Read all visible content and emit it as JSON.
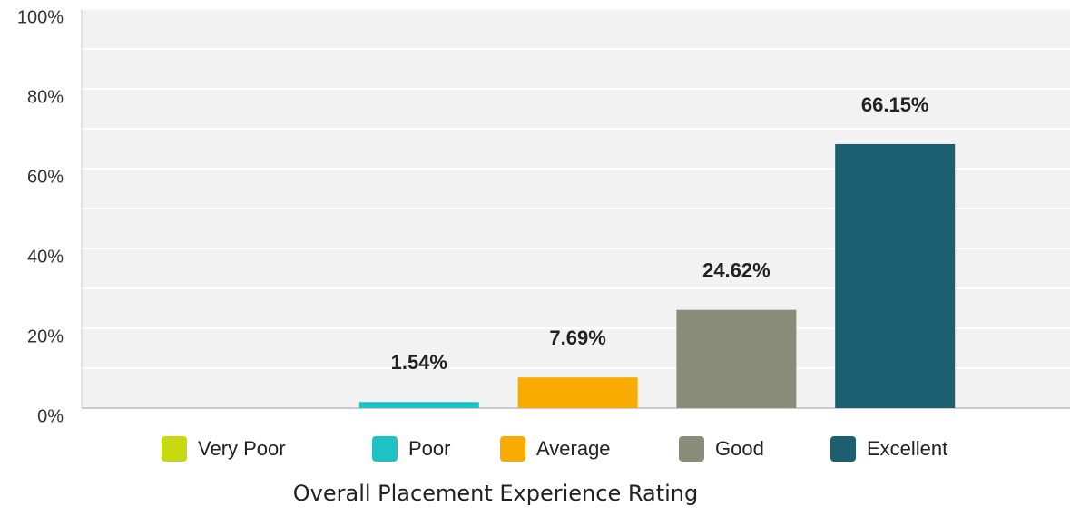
{
  "chart_data": {
    "type": "bar",
    "title": "Overall Placement Experience Rating",
    "categories": [
      "Very Poor",
      "Poor",
      "Average",
      "Good",
      "Excellent"
    ],
    "values": [
      0,
      1.54,
      7.69,
      24.62,
      66.15
    ],
    "value_labels": [
      null,
      "1.54%",
      "7.69%",
      "24.62%",
      "66.15%"
    ],
    "colors": [
      "#c8da0f",
      "#1fc2c4",
      "#f9ab00",
      "#8a8c7a",
      "#1b5f70"
    ],
    "ylim": [
      0,
      100
    ],
    "yticks": [
      {
        "value": 0,
        "label": "0%"
      },
      {
        "value": 20,
        "label": "20%"
      },
      {
        "value": 40,
        "label": "40%"
      },
      {
        "value": 60,
        "label": "60%"
      },
      {
        "value": 80,
        "label": "80%"
      },
      {
        "value": 100,
        "label": "100%"
      }
    ],
    "minor_yticks": [
      10,
      30,
      50,
      70,
      90
    ],
    "grid": true
  }
}
